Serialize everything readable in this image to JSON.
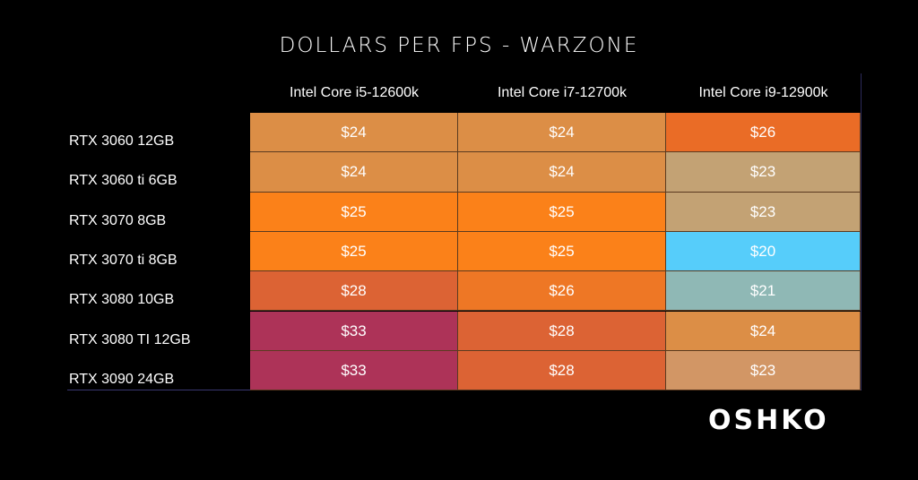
{
  "chart_data": {
    "type": "table",
    "title": "DOLLARS PER FPS - WARZONE",
    "columns": [
      "Intel Core i5-12600k",
      "Intel Core i7-12700k",
      "Intel Core i9-12900k"
    ],
    "rows": [
      {
        "label": "RTX 3060 12GB",
        "values": [
          "$24",
          "$24",
          "$26"
        ],
        "colors": [
          "#dc8e46",
          "#dc8e46",
          "#ea6c26"
        ]
      },
      {
        "label": "RTX 3060 ti 6GB",
        "values": [
          "$24",
          "$24",
          "$23"
        ],
        "colors": [
          "#dc8e46",
          "#dc8e46",
          "#c3a274"
        ]
      },
      {
        "label": "RTX 3070 8GB",
        "values": [
          "$25",
          "$25",
          "$23"
        ],
        "colors": [
          "#fb8119",
          "#fb8119",
          "#c3a274"
        ]
      },
      {
        "label": "RTX 3070 ti 8GB",
        "values": [
          "$25",
          "$25",
          "$20"
        ],
        "colors": [
          "#fb8119",
          "#fb8119",
          "#56cdfa"
        ]
      },
      {
        "label": "RTX 3080 10GB",
        "values": [
          "$28",
          "$26",
          "$21"
        ],
        "colors": [
          "#dc6334",
          "#ee7725",
          "#8fb8b5"
        ]
      },
      {
        "label": "RTX 3080 TI 12GB",
        "values": [
          "$33",
          "$28",
          "$24"
        ],
        "colors": [
          "#ad3358",
          "#dc6334",
          "#dc8e46"
        ]
      },
      {
        "label": "RTX 3090 24GB",
        "values": [
          "$33",
          "$28",
          "$23"
        ],
        "colors": [
          "#ad3358",
          "#dc6334",
          "#d29665"
        ]
      }
    ]
  },
  "brand": {
    "logo_text": "OSHKO"
  }
}
